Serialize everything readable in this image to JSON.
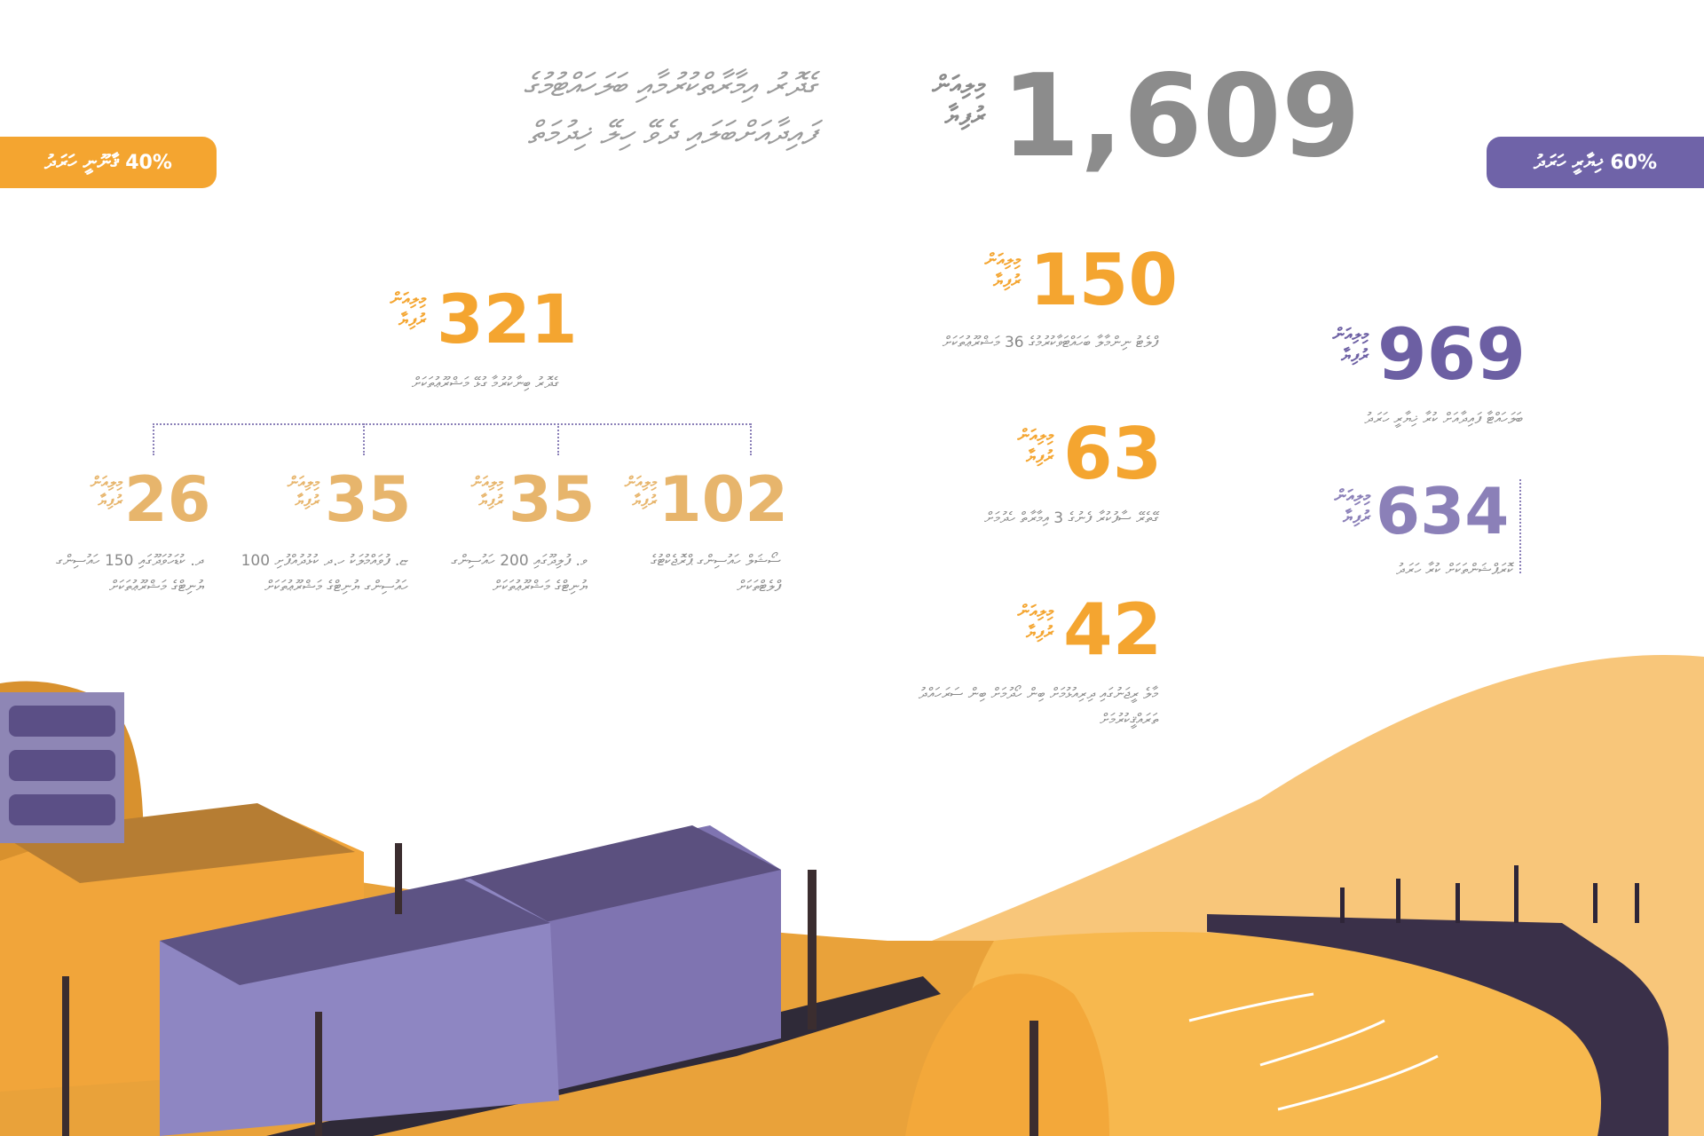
{
  "colors": {
    "gray": "#8c8c8c",
    "orange": "#f4a530",
    "orange_light": "#e7b56c",
    "purple": "#6c5fa3",
    "purple_light": "#8b80b8",
    "desc": "#8a8a8a"
  },
  "unit_label": "މިލިއަން\nރުފިޔާ",
  "header": {
    "total": "1,609",
    "title_line1": "ގެދޮރު އިމާރާތްކުރުމާއި ބަލަހައްޓުމުގެ",
    "title_line2": "ފައިދާއަށްބަލައި ދެވޭ ހިލޭ ޚިދުމަތް"
  },
  "pills": {
    "left": "40% ޤާނޫނީ ހަރަދު",
    "right": "60% ޚިޔާރީ ހަރަދު"
  },
  "left_group": {
    "total": {
      "value": "321",
      "desc": "ގެދޮރު ބިނާކުރުމާ ގުޅޭ މަޝްރޫޢުތަކަށް"
    },
    "items": [
      {
        "value": "102",
        "desc": "ސޯޝަލް ހައުސިންގ ޕްރޮޖެކްޓުގެ ފްލެޓްތަކަށް"
      },
      {
        "value": "35",
        "desc": "ވ. ފުލިދޫގައި 200 ހައުސިންގ ޔުނިޓްގެ މަޝްރޫޢުތަކަށް"
      },
      {
        "value": "35",
        "desc": "ޏ. ފުވައްމުލަކު ހ.ދ ކުޅުދުއްފުށި 100 ހައުސިންގ ޔުނިޓްގެ މަޝްރޫޢުތަކަށް"
      },
      {
        "value": "26",
        "desc": "ދ. ކުޑަހުވަދޫގައި 150 ހައުސިންގ ޔުނިޓްގެ މަޝްރޫޢުތަކަށް"
      }
    ]
  },
  "middle_group": [
    {
      "value": "150",
      "desc": "ފްލެޓު ނިންމާލާ ބަހައްޓަވާކުރުމުގެ 36 މަޝްރޫޢުތަކަށް"
    },
    {
      "value": "63",
      "desc": "ގޭތެރޭ ސާފުކުރާ ފެނުގެ 3 އިމާރާތް ހެދުމަށް"
    },
    {
      "value": "42",
      "desc": "މާލެ ރީޖަނުގައި ދިރިއުޅުމަށް ބިން ހޯދުމަށް ބިން ސަރަހައްދު ތަރައްޤީކުރުމަށް"
    }
  ],
  "right_group": {
    "total": {
      "value": "969",
      "desc": "ބަލަހައްޓާ ފައިދާއަށް ކުރާ ޚިޔާރީ ހަރަދު"
    },
    "sub": {
      "value": "634",
      "desc": "ކޮރަޕްޝަންތަކަށް ކުރާ ހަރަދު"
    }
  }
}
